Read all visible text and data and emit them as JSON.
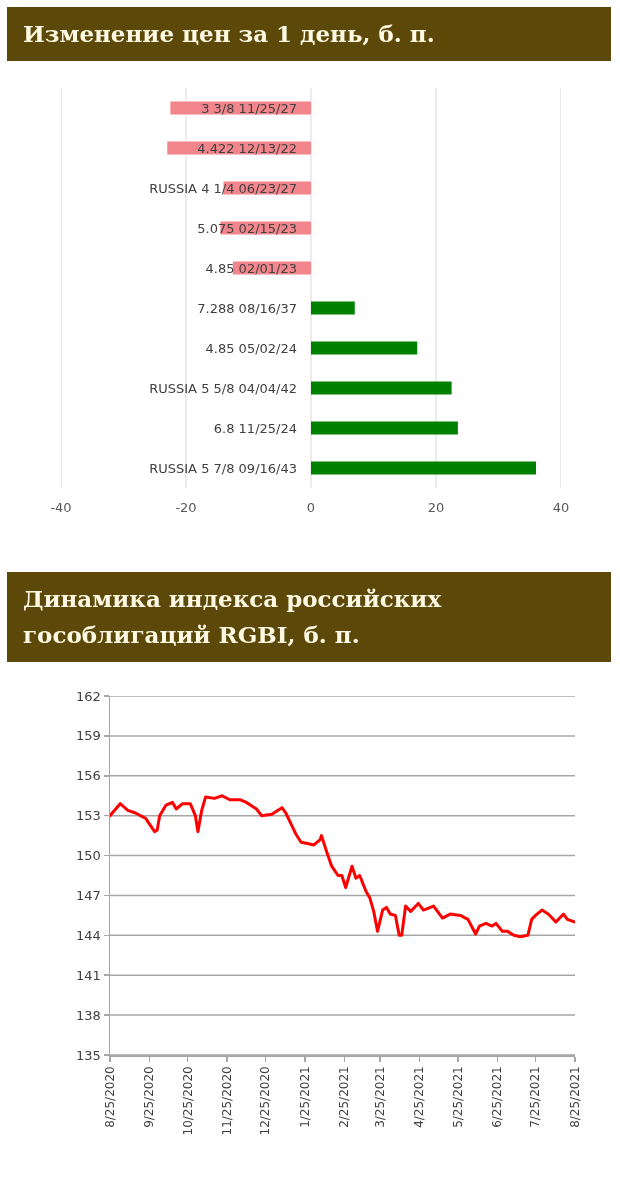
{
  "chart_data": [
    {
      "type": "bar",
      "title": "Изменение цен за 1 день, б. п.",
      "orientation": "horizontal",
      "categories": [
        "3 3/8 11/25/27",
        "4.422 12/13/22",
        "RUSSIA 4 1/4 06/23/27",
        "5.075 02/15/23",
        "4.85 02/01/23",
        "7.288 08/16/37",
        "4.85 05/02/24",
        "RUSSIA 5 5/8 04/04/42",
        "6.8 11/25/24",
        "RUSSIA 5 7/8 09/16/43"
      ],
      "values": [
        -22.5,
        -23,
        -14,
        -14.5,
        -12.5,
        7,
        17,
        22.5,
        23.5,
        36
      ],
      "colors": [
        "#f2868c",
        "#f2868c",
        "#f2868c",
        "#f2868c",
        "#f2868c",
        "#008000",
        "#008000",
        "#008000",
        "#008000",
        "#008000"
      ],
      "xlim": [
        -40,
        40
      ],
      "xticks": [
        -40,
        -20,
        0,
        20,
        40
      ],
      "grid": "x"
    },
    {
      "type": "line",
      "title": "Динамика индекса российских гособлигаций RGBI, б. п.",
      "x": [
        "2020-08-25",
        "2020-09-02",
        "2020-09-08",
        "2020-09-14",
        "2020-09-22",
        "2020-09-29",
        "2020-10-01",
        "2020-10-03",
        "2020-10-08",
        "2020-10-13",
        "2020-10-16",
        "2020-10-21",
        "2020-10-27",
        "2020-10-31",
        "2020-11-02",
        "2020-11-05",
        "2020-11-08",
        "2020-11-15",
        "2020-11-21",
        "2020-11-27",
        "2020-12-05",
        "2020-12-10",
        "2020-12-18",
        "2020-12-22",
        "2020-12-30",
        "2021-01-07",
        "2021-01-10",
        "2021-01-14",
        "2021-01-18",
        "2021-01-22",
        "2021-01-27",
        "2021-02-01",
        "2021-02-06",
        "2021-02-07",
        "2021-02-11",
        "2021-02-15",
        "2021-02-20",
        "2021-02-23",
        "2021-02-26",
        "2021-03-03",
        "2021-03-06",
        "2021-03-09",
        "2021-03-14",
        "2021-03-17",
        "2021-03-20",
        "2021-03-23",
        "2021-03-27",
        "2021-03-30",
        "2021-04-02",
        "2021-04-06",
        "2021-04-09",
        "2021-04-11",
        "2021-04-14",
        "2021-04-18",
        "2021-04-24",
        "2021-04-28",
        "2021-05-06",
        "2021-05-13",
        "2021-05-19",
        "2021-05-27",
        "2021-06-02",
        "2021-06-08",
        "2021-06-11",
        "2021-06-16",
        "2021-06-21",
        "2021-06-24",
        "2021-06-29",
        "2021-07-03",
        "2021-07-08",
        "2021-07-13",
        "2021-07-19",
        "2021-07-22",
        "2021-07-25",
        "2021-07-30",
        "2021-08-04",
        "2021-08-10",
        "2021-08-16",
        "2021-08-19",
        "2021-08-25"
      ],
      "values": [
        153.0,
        153.9,
        153.4,
        153.2,
        152.8,
        151.8,
        151.9,
        153.0,
        153.8,
        154.0,
        153.5,
        153.9,
        153.9,
        153.0,
        151.8,
        153.4,
        154.4,
        154.3,
        154.5,
        154.2,
        154.2,
        154.0,
        153.5,
        153.0,
        153.1,
        153.6,
        153.2,
        152.4,
        151.6,
        151.0,
        150.9,
        150.8,
        151.2,
        151.5,
        150.3,
        149.2,
        148.5,
        148.5,
        147.6,
        149.2,
        148.3,
        148.5,
        147.3,
        146.8,
        145.8,
        144.3,
        145.9,
        146.1,
        145.6,
        145.5,
        144.0,
        144.0,
        146.2,
        145.8,
        146.4,
        145.9,
        146.2,
        145.3,
        145.6,
        145.5,
        145.2,
        144.1,
        144.7,
        144.9,
        144.7,
        144.9,
        144.3,
        144.3,
        144.0,
        143.9,
        144.0,
        145.2,
        145.5,
        145.9,
        145.6,
        145.0,
        145.6,
        145.2,
        145.0
      ],
      "color": "#ff0000",
      "xlim": [
        "2020-08-25",
        "2021-08-25"
      ],
      "xticks": [
        {
          "value": "2020-08-25",
          "label": "8/25/2020"
        },
        {
          "value": "2020-09-25",
          "label": "9/25/2020"
        },
        {
          "value": "2020-10-25",
          "label": "10/25/2020"
        },
        {
          "value": "2020-11-25",
          "label": "11/25/2020"
        },
        {
          "value": "2020-12-25",
          "label": "12/25/2020"
        },
        {
          "value": "2021-01-25",
          "label": "1/25/2021"
        },
        {
          "value": "2021-02-25",
          "label": "2/25/2021"
        },
        {
          "value": "2021-03-25",
          "label": "3/25/2021"
        },
        {
          "value": "2021-04-25",
          "label": "4/25/2021"
        },
        {
          "value": "2021-05-25",
          "label": "5/25/2021"
        },
        {
          "value": "2021-06-25",
          "label": "6/25/2021"
        },
        {
          "value": "2021-07-25",
          "label": "7/25/2021"
        },
        {
          "value": "2021-08-25",
          "label": "8/25/2021"
        }
      ],
      "ylim": [
        135,
        162
      ],
      "yticks": [
        135,
        138,
        141,
        144,
        147,
        150,
        153,
        156,
        159,
        162
      ],
      "grid": "y"
    }
  ]
}
